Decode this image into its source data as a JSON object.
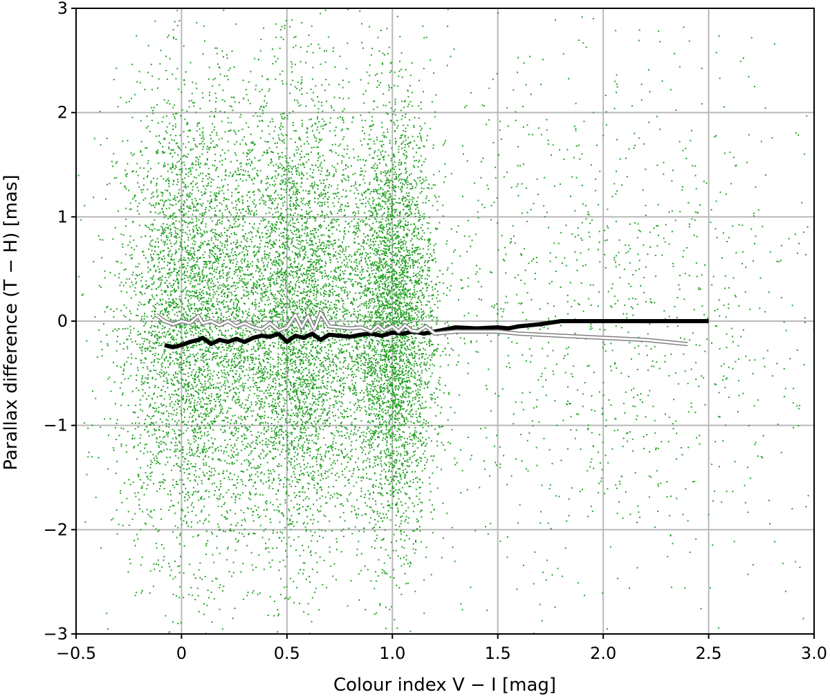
{
  "chart_data": {
    "type": "scatter",
    "title": "",
    "xlabel": "Colour index V − I [mag]",
    "ylabel": "Parallax difference (T − H) [mas]",
    "xlim": [
      -0.5,
      3.0
    ],
    "ylim": [
      -3,
      3
    ],
    "grid": true,
    "x_ticks": [
      -0.5,
      0,
      0.5,
      1.0,
      1.5,
      2.0,
      2.5,
      3.0
    ],
    "x_tick_labels": [
      "−0.5",
      "0",
      "0.5",
      "1.0",
      "1.5",
      "2.0",
      "2.5",
      "3.0"
    ],
    "y_ticks": [
      -3,
      -2,
      -1,
      0,
      1,
      2,
      3
    ],
    "y_tick_labels": [
      "−3",
      "−2",
      "−1",
      "0",
      "1",
      "2",
      "3"
    ],
    "colors": {
      "points": "#22a022",
      "black_line": "#000000",
      "white_line_fill": "#ffffff",
      "white_line_edge": "#808080",
      "grid": "#b8b8b8"
    },
    "scatter_density": {
      "description_of_clusters_in_data_units": "dense clouds centred near V-I 0.0-0.7 and 0.9-1.1, sparse beyond 1.6",
      "clusters": [
        {
          "x_center": 0.05,
          "x_spread": 0.18,
          "y_spread": 1.1,
          "weight": 0.3
        },
        {
          "x_center": 0.55,
          "x_spread": 0.16,
          "y_spread": 1.1,
          "weight": 0.32
        },
        {
          "x_center": 1.0,
          "x_spread": 0.1,
          "y_spread": 1.0,
          "weight": 0.28
        },
        {
          "x_center": 1.9,
          "x_spread": 0.6,
          "y_spread": 1.4,
          "weight": 0.1
        }
      ]
    },
    "series": [
      {
        "style": "black-line",
        "x": [
          -0.08,
          -0.04,
          0.0,
          0.04,
          0.08,
          0.1,
          0.14,
          0.18,
          0.22,
          0.26,
          0.3,
          0.34,
          0.38,
          0.42,
          0.46,
          0.5,
          0.54,
          0.58,
          0.62,
          0.66,
          0.7,
          0.75,
          0.8,
          0.85,
          0.9,
          0.95,
          1.0,
          1.05,
          1.1,
          1.15,
          1.2,
          1.3,
          1.4,
          1.5,
          1.55,
          1.6,
          1.7,
          1.8,
          2.0,
          2.2,
          2.5
        ],
        "y": [
          -0.23,
          -0.25,
          -0.23,
          -0.2,
          -0.18,
          -0.16,
          -0.22,
          -0.18,
          -0.2,
          -0.17,
          -0.2,
          -0.16,
          -0.14,
          -0.15,
          -0.12,
          -0.2,
          -0.14,
          -0.16,
          -0.12,
          -0.18,
          -0.13,
          -0.14,
          -0.15,
          -0.13,
          -0.12,
          -0.14,
          -0.11,
          -0.12,
          -0.1,
          -0.12,
          -0.1,
          -0.06,
          -0.07,
          -0.06,
          -0.07,
          -0.05,
          -0.03,
          0.0,
          0.0,
          0.0,
          0.0
        ]
      },
      {
        "style": "white-line",
        "x": [
          -0.12,
          -0.08,
          -0.04,
          0.0,
          0.04,
          0.08,
          0.1,
          0.14,
          0.18,
          0.22,
          0.26,
          0.3,
          0.34,
          0.38,
          0.42,
          0.46,
          0.5,
          0.54,
          0.57,
          0.6,
          0.63,
          0.66,
          0.7,
          0.75,
          0.8,
          0.85,
          0.9,
          0.93,
          0.96,
          1.0,
          1.03,
          1.06,
          1.09,
          1.12,
          1.16,
          1.2,
          1.3,
          1.4,
          1.5,
          1.6,
          1.8,
          2.0,
          2.2,
          2.4
        ],
        "y": [
          0.06,
          0.0,
          -0.03,
          0.0,
          -0.02,
          0.05,
          -0.02,
          0.0,
          -0.04,
          0.0,
          -0.05,
          -0.02,
          -0.06,
          -0.08,
          -0.02,
          -0.09,
          -0.06,
          0.06,
          -0.06,
          0.05,
          -0.08,
          0.08,
          -0.05,
          -0.06,
          -0.07,
          -0.06,
          -0.1,
          -0.04,
          -0.09,
          -0.05,
          -0.1,
          -0.04,
          -0.09,
          -0.1,
          -0.05,
          -0.12,
          -0.1,
          -0.1,
          -0.1,
          -0.12,
          -0.14,
          -0.16,
          -0.18,
          -0.22
        ]
      }
    ]
  }
}
